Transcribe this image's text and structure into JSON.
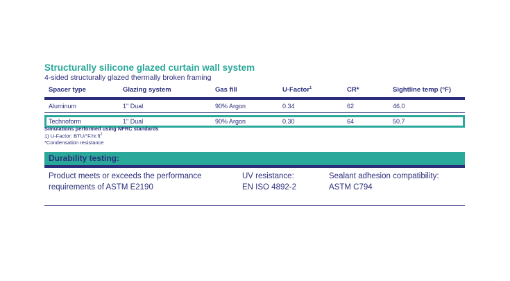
{
  "title": "Structurally silicone glazed curtain wall system",
  "subtitle": "4-sided structurally glazed thermally broken framing",
  "table": {
    "headers": [
      "Spacer type",
      "Glazing system",
      "Gas fill",
      "U-Factor",
      "CR*",
      "Sightline temp (°F)"
    ],
    "ufactor_sup": "1",
    "rows": [
      [
        "Aluminum",
        "1\" Dual",
        "90% Argon",
        "0.34",
        "62",
        "46.0"
      ],
      [
        "Technoform",
        "1\" Dual",
        "90% Argon",
        "0.30",
        "64",
        "50.7"
      ]
    ]
  },
  "notes": {
    "line1": "Simulations performed using NFRC standards",
    "line2": "1) U-Factor: BTU/°F.hr.ft",
    "line2_sup": "2",
    "line3": "*Condensation resistance"
  },
  "durability": {
    "heading": "Durability testing:",
    "col1_line1": "Product meets or exceeds the performance",
    "col1_line2": "requirements of ASTM E2190",
    "col2_line1": "UV resistance:",
    "col2_line2": "EN ISO 4892-2",
    "col3_line1": "Sealant adhesion compatibility:",
    "col3_line2": "ASTM C794"
  },
  "colors": {
    "navy": "#2b2e7a",
    "teal": "#2aa89a"
  }
}
